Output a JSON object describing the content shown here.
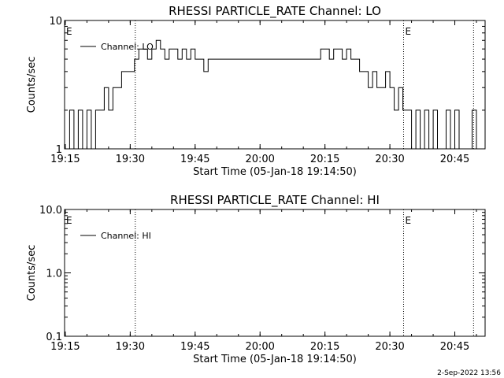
{
  "footer_date": "2-Sep-2022 13:56",
  "chart_data": [
    {
      "type": "line",
      "title": "RHESSI PARTICLE_RATE Channel: LO",
      "xlabel": "Start Time (05-Jan-18 19:14:50)",
      "ylabel": "Counts/sec",
      "y_scale": "log",
      "x_ticks": [
        "19:15",
        "19:30",
        "19:45",
        "20:00",
        "20:15",
        "20:30",
        "20:45"
      ],
      "y_ticks": [
        "1",
        "10"
      ],
      "ylim": [
        1,
        10
      ],
      "xlim": [
        "19:14:50",
        "20:52:00"
      ],
      "event_markers": [
        {
          "time": "19:14:50",
          "label": "E"
        },
        {
          "time": "19:31:10",
          "label": ""
        },
        {
          "time": "20:33:10",
          "label": "E"
        },
        {
          "time": "20:49:20",
          "label": ""
        }
      ],
      "legend": "top-left",
      "series": [
        {
          "name": "Channel: LO",
          "x": [
            "19:15:00",
            "19:16:00",
            "19:17:00",
            "19:18:00",
            "19:19:00",
            "19:20:00",
            "19:21:00",
            "19:22:00",
            "19:23:00",
            "19:24:00",
            "19:25:00",
            "19:26:00",
            "19:27:00",
            "19:28:00",
            "19:29:00",
            "19:30:00",
            "19:31:00",
            "19:32:00",
            "19:33:00",
            "19:34:00",
            "19:35:00",
            "19:36:00",
            "19:37:00",
            "19:38:00",
            "19:39:00",
            "19:40:00",
            "19:41:00",
            "19:42:00",
            "19:43:00",
            "19:44:00",
            "19:45:00",
            "19:46:00",
            "19:47:00",
            "19:48:00",
            "19:49:00",
            "19:50:00",
            "19:52:00",
            "19:54:00",
            "19:56:00",
            "19:58:00",
            "20:00:00",
            "20:02:00",
            "20:04:00",
            "20:06:00",
            "20:08:00",
            "20:10:00",
            "20:12:00",
            "20:13:00",
            "20:14:00",
            "20:15:00",
            "20:16:00",
            "20:17:00",
            "20:18:00",
            "20:19:00",
            "20:20:00",
            "20:21:00",
            "20:22:00",
            "20:23:00",
            "20:24:00",
            "20:25:00",
            "20:26:00",
            "20:27:00",
            "20:28:00",
            "20:29:00",
            "20:30:00",
            "20:31:00",
            "20:32:00",
            "20:33:00",
            "20:34:00",
            "20:35:00",
            "20:36:00",
            "20:37:00",
            "20:38:00",
            "20:39:00",
            "20:40:00",
            "20:41:00",
            "20:42:00",
            "20:43:00",
            "20:44:00",
            "20:45:00",
            "20:46:00",
            "20:47:00",
            "20:48:00",
            "20:49:00",
            "20:50:00"
          ],
          "y": [
            1,
            2,
            1,
            2,
            1,
            2,
            1,
            2,
            2,
            3,
            2,
            3,
            3,
            4,
            4,
            4,
            5,
            6,
            6,
            5,
            6,
            7,
            6,
            5,
            6,
            6,
            5,
            6,
            5,
            6,
            5,
            5,
            4,
            5,
            5,
            5,
            5,
            5,
            5,
            5,
            5,
            5,
            5,
            5,
            5,
            5,
            5,
            5,
            6,
            6,
            5,
            6,
            6,
            5,
            6,
            5,
            5,
            4,
            4,
            3,
            4,
            3,
            3,
            4,
            3,
            2,
            3,
            2,
            2,
            1,
            2,
            1,
            2,
            1,
            2,
            1,
            1,
            2,
            1,
            2,
            1,
            1,
            1,
            2,
            1
          ]
        }
      ]
    },
    {
      "type": "line",
      "title": "RHESSI PARTICLE_RATE Channel: HI",
      "xlabel": "Start Time (05-Jan-18 19:14:50)",
      "ylabel": "Counts/sec",
      "y_scale": "log",
      "x_ticks": [
        "19:15",
        "19:30",
        "19:45",
        "20:00",
        "20:15",
        "20:30",
        "20:45"
      ],
      "y_ticks": [
        "0.1",
        "1.0",
        "10.0"
      ],
      "ylim": [
        0.1,
        10
      ],
      "xlim": [
        "19:14:50",
        "20:52:00"
      ],
      "event_markers": [
        {
          "time": "19:14:50",
          "label": "E"
        },
        {
          "time": "19:31:10",
          "label": ""
        },
        {
          "time": "20:33:10",
          "label": "E"
        },
        {
          "time": "20:49:20",
          "label": ""
        }
      ],
      "legend": "top-left",
      "series": [
        {
          "name": "Channel: HI",
          "x": [],
          "y": []
        }
      ]
    }
  ]
}
